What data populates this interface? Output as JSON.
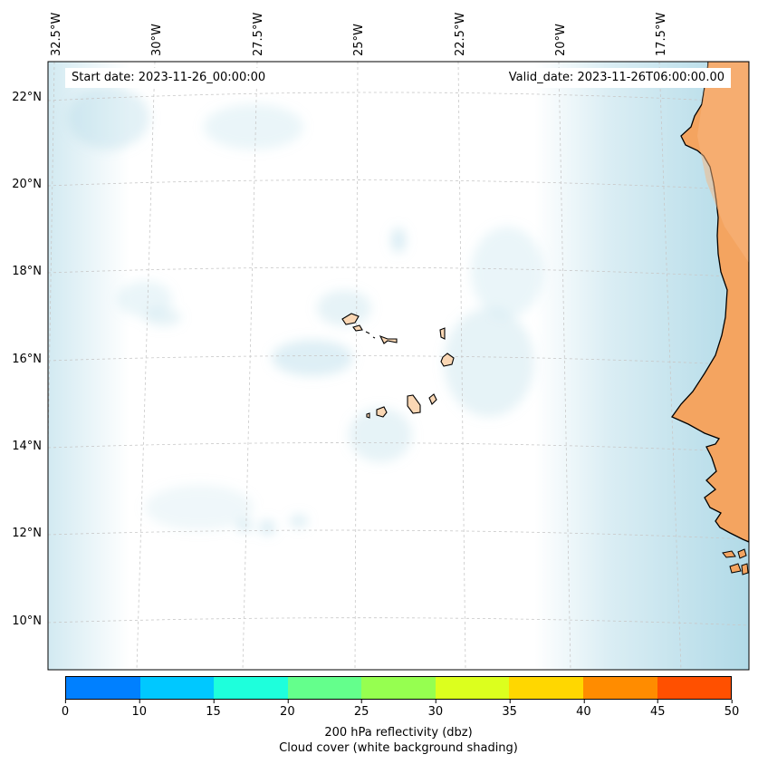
{
  "map": {
    "start_date_text": "Start date: 2023-11-26_00:00:00",
    "valid_date_text": "Valid_date: 2023-11-26T06:00:00.00",
    "lon_labels": [
      "32.5°W",
      "30°W",
      "27.5°W",
      "25°W",
      "22.5°W",
      "20°W",
      "17.5°W"
    ],
    "lat_labels": [
      "22°N",
      "20°N",
      "18°N",
      "16°N",
      "14°N",
      "12°N",
      "10°N"
    ],
    "colors": {
      "land_mainland": "#f4a460",
      "land_islands": "#fad7b4",
      "cloud": "#add8e6",
      "gridline": "#c8c8c8",
      "coastline": "#000000"
    }
  },
  "colorbar": {
    "ticks": [
      "0",
      "10",
      "15",
      "20",
      "25",
      "30",
      "35",
      "40",
      "45",
      "50"
    ],
    "colors": [
      "#0080ff",
      "#00c8ff",
      "#1effdc",
      "#64ff8c",
      "#96ff50",
      "#dcff1e",
      "#ffd700",
      "#ff8c00",
      "#ff5000"
    ],
    "label": "200 hPa reflectivity (dbz)",
    "sublabel": "Cloud cover (white background shading)"
  }
}
